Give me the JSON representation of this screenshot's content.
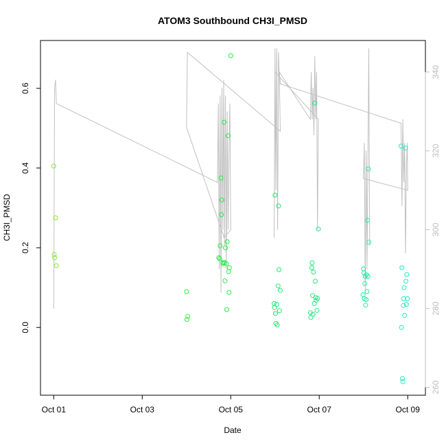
{
  "chart_data": {
    "type": "scatter",
    "title": "ATOM3 Southbound CH3I_PMSD",
    "xlabel": "Date",
    "ylabel": "CH3I_PMSD",
    "y2label": "",
    "x_tick_labels": [
      "Oct 01",
      "Oct 03",
      "Oct 05",
      "Oct 07",
      "Oct 09"
    ],
    "x_tick_days": [
      1,
      3,
      5,
      7,
      9
    ],
    "xlim": [
      0.7,
      9.4
    ],
    "ylim": [
      -0.17,
      0.72
    ],
    "y_ticks": [
      0.0,
      0.2,
      0.4,
      0.6
    ],
    "y_tick_labels": [
      "0.0",
      "0.2",
      "0.4",
      "0.6"
    ],
    "y2lim": [
      258,
      348
    ],
    "y2_ticks": [
      260,
      280,
      300,
      320,
      340
    ],
    "y2_tick_labels": [
      "260",
      "280",
      "300",
      "320",
      "340"
    ],
    "grid": false,
    "colors": {
      "axis": "#000000",
      "secondary_axis": "#bdbdbd",
      "line": "#c0c0c0",
      "point_start": "#88e830",
      "point_mid": "#22e84a",
      "point_end": "#22e8c0"
    },
    "points": [
      {
        "x": 1.0,
        "y": 0.405
      },
      {
        "x": 1.01,
        "y": 0.183
      },
      {
        "x": 1.02,
        "y": 0.175
      },
      {
        "x": 1.04,
        "y": 0.275
      },
      {
        "x": 1.06,
        "y": 0.155
      },
      {
        "x": 4.0,
        "y": 0.09
      },
      {
        "x": 4.01,
        "y": 0.02
      },
      {
        "x": 4.03,
        "y": 0.028
      },
      {
        "x": 4.73,
        "y": 0.175
      },
      {
        "x": 4.75,
        "y": 0.172
      },
      {
        "x": 4.76,
        "y": 0.205
      },
      {
        "x": 4.78,
        "y": 0.375
      },
      {
        "x": 4.79,
        "y": 0.283
      },
      {
        "x": 4.8,
        "y": 0.32
      },
      {
        "x": 4.82,
        "y": 0.16
      },
      {
        "x": 4.83,
        "y": 0.163
      },
      {
        "x": 4.85,
        "y": 0.515
      },
      {
        "x": 4.86,
        "y": 0.163
      },
      {
        "x": 4.87,
        "y": 0.117
      },
      {
        "x": 4.88,
        "y": 0.2
      },
      {
        "x": 4.9,
        "y": 0.16
      },
      {
        "x": 4.91,
        "y": 0.045
      },
      {
        "x": 4.92,
        "y": 0.215
      },
      {
        "x": 4.94,
        "y": 0.481
      },
      {
        "x": 4.95,
        "y": 0.14
      },
      {
        "x": 4.96,
        "y": 0.088
      },
      {
        "x": 4.97,
        "y": 0.15
      },
      {
        "x": 5.0,
        "y": 0.682
      },
      {
        "x": 5.98,
        "y": 0.06
      },
      {
        "x": 5.99,
        "y": 0.05
      },
      {
        "x": 6.0,
        "y": 0.332
      },
      {
        "x": 6.01,
        "y": 0.035
      },
      {
        "x": 6.02,
        "y": 0.01
      },
      {
        "x": 6.04,
        "y": 0.058
      },
      {
        "x": 6.05,
        "y": 0.006
      },
      {
        "x": 6.07,
        "y": 0.104
      },
      {
        "x": 6.08,
        "y": 0.305
      },
      {
        "x": 6.09,
        "y": 0.145
      },
      {
        "x": 6.1,
        "y": 0.042
      },
      {
        "x": 6.12,
        "y": 0.093
      },
      {
        "x": 6.8,
        "y": 0.037
      },
      {
        "x": 6.81,
        "y": 0.025
      },
      {
        "x": 6.83,
        "y": 0.15
      },
      {
        "x": 6.84,
        "y": 0.162
      },
      {
        "x": 6.85,
        "y": 0.08
      },
      {
        "x": 6.86,
        "y": 0.033
      },
      {
        "x": 6.87,
        "y": 0.139
      },
      {
        "x": 6.89,
        "y": 0.06
      },
      {
        "x": 6.9,
        "y": 0.563
      },
      {
        "x": 6.91,
        "y": 0.116
      },
      {
        "x": 6.92,
        "y": 0.075
      },
      {
        "x": 6.93,
        "y": 0.068
      },
      {
        "x": 6.95,
        "y": 0.043
      },
      {
        "x": 6.96,
        "y": 0.073
      },
      {
        "x": 6.98,
        "y": 0.247
      },
      {
        "x": 7.99,
        "y": 0.082
      },
      {
        "x": 8.0,
        "y": 0.147
      },
      {
        "x": 8.01,
        "y": 0.137
      },
      {
        "x": 8.02,
        "y": 0.072
      },
      {
        "x": 8.03,
        "y": 0.11
      },
      {
        "x": 8.04,
        "y": 0.128
      },
      {
        "x": 8.05,
        "y": 0.056
      },
      {
        "x": 8.06,
        "y": 0.07
      },
      {
        "x": 8.07,
        "y": 0.132
      },
      {
        "x": 8.08,
        "y": 0.09
      },
      {
        "x": 8.09,
        "y": 0.269
      },
      {
        "x": 8.1,
        "y": 0.128
      },
      {
        "x": 8.11,
        "y": 0.398
      },
      {
        "x": 8.12,
        "y": 0.214
      },
      {
        "x": 8.85,
        "y": 0.455
      },
      {
        "x": 8.86,
        "y": 0.0
      },
      {
        "x": 8.87,
        "y": 0.15
      },
      {
        "x": 8.88,
        "y": -0.128
      },
      {
        "x": 8.89,
        "y": -0.136
      },
      {
        "x": 8.9,
        "y": 0.055
      },
      {
        "x": 8.91,
        "y": 0.072
      },
      {
        "x": 8.92,
        "y": 0.1
      },
      {
        "x": 8.93,
        "y": 0.03
      },
      {
        "x": 8.95,
        "y": 0.45
      },
      {
        "x": 8.96,
        "y": 0.116
      },
      {
        "x": 8.97,
        "y": 0.058
      },
      {
        "x": 8.98,
        "y": 0.133
      },
      {
        "x": 8.99,
        "y": 0.072
      }
    ],
    "altitude_line": [
      {
        "x": 1.0,
        "y2": 280
      },
      {
        "x": 1.02,
        "y2": 336
      },
      {
        "x": 1.04,
        "y2": 338
      },
      {
        "x": 1.06,
        "y2": 332
      },
      {
        "x": 4.7,
        "y2": 312
      },
      {
        "x": 4.72,
        "y2": 332
      },
      {
        "x": 4.74,
        "y2": 290
      },
      {
        "x": 4.76,
        "y2": 334
      },
      {
        "x": 4.78,
        "y2": 284
      },
      {
        "x": 4.8,
        "y2": 336
      },
      {
        "x": 4.82,
        "y2": 300
      },
      {
        "x": 4.84,
        "y2": 338
      },
      {
        "x": 4.86,
        "y2": 296
      },
      {
        "x": 4.88,
        "y2": 334
      },
      {
        "x": 4.9,
        "y2": 290
      },
      {
        "x": 4.92,
        "y2": 330
      },
      {
        "x": 4.94,
        "y2": 300
      },
      {
        "x": 4.96,
        "y2": 320
      },
      {
        "x": 4.98,
        "y2": 332
      },
      {
        "x": 5.0,
        "y2": 300
      },
      {
        "x": 4.85,
        "y2": 298
      },
      {
        "x": 4.0,
        "y2": 326
      },
      {
        "x": 4.02,
        "y2": 345
      },
      {
        "x": 6.12,
        "y2": 325
      },
      {
        "x": 6.1,
        "y2": 338
      },
      {
        "x": 6.08,
        "y2": 345
      },
      {
        "x": 6.06,
        "y2": 300
      },
      {
        "x": 6.04,
        "y2": 346
      },
      {
        "x": 6.02,
        "y2": 310
      },
      {
        "x": 6.0,
        "y2": 346
      },
      {
        "x": 5.98,
        "y2": 298
      },
      {
        "x": 6.0,
        "y2": 340
      },
      {
        "x": 6.98,
        "y2": 328
      },
      {
        "x": 6.96,
        "y2": 300
      },
      {
        "x": 6.94,
        "y2": 340
      },
      {
        "x": 6.92,
        "y2": 328
      },
      {
        "x": 6.9,
        "y2": 344
      },
      {
        "x": 6.88,
        "y2": 324
      },
      {
        "x": 6.86,
        "y2": 336
      },
      {
        "x": 6.84,
        "y2": 328
      },
      {
        "x": 6.82,
        "y2": 340
      },
      {
        "x": 6.8,
        "y2": 328
      },
      {
        "x": 6.1,
        "y2": 340
      },
      {
        "x": 6.12,
        "y2": 337
      },
      {
        "x": 8.85,
        "y2": 327
      },
      {
        "x": 8.87,
        "y2": 306
      },
      {
        "x": 8.89,
        "y2": 328
      },
      {
        "x": 8.91,
        "y2": 312
      },
      {
        "x": 8.93,
        "y2": 322
      },
      {
        "x": 8.95,
        "y2": 294
      },
      {
        "x": 8.97,
        "y2": 316
      },
      {
        "x": 8.99,
        "y2": 322
      },
      {
        "x": 9.0,
        "y2": 310
      },
      {
        "x": 8.0,
        "y2": 313
      },
      {
        "x": 8.02,
        "y2": 322
      },
      {
        "x": 8.04,
        "y2": 284
      },
      {
        "x": 8.06,
        "y2": 320
      },
      {
        "x": 8.08,
        "y2": 290
      },
      {
        "x": 8.1,
        "y2": 318
      },
      {
        "x": 8.12,
        "y2": 346
      },
      {
        "x": 8.14,
        "y2": 296
      }
    ]
  }
}
